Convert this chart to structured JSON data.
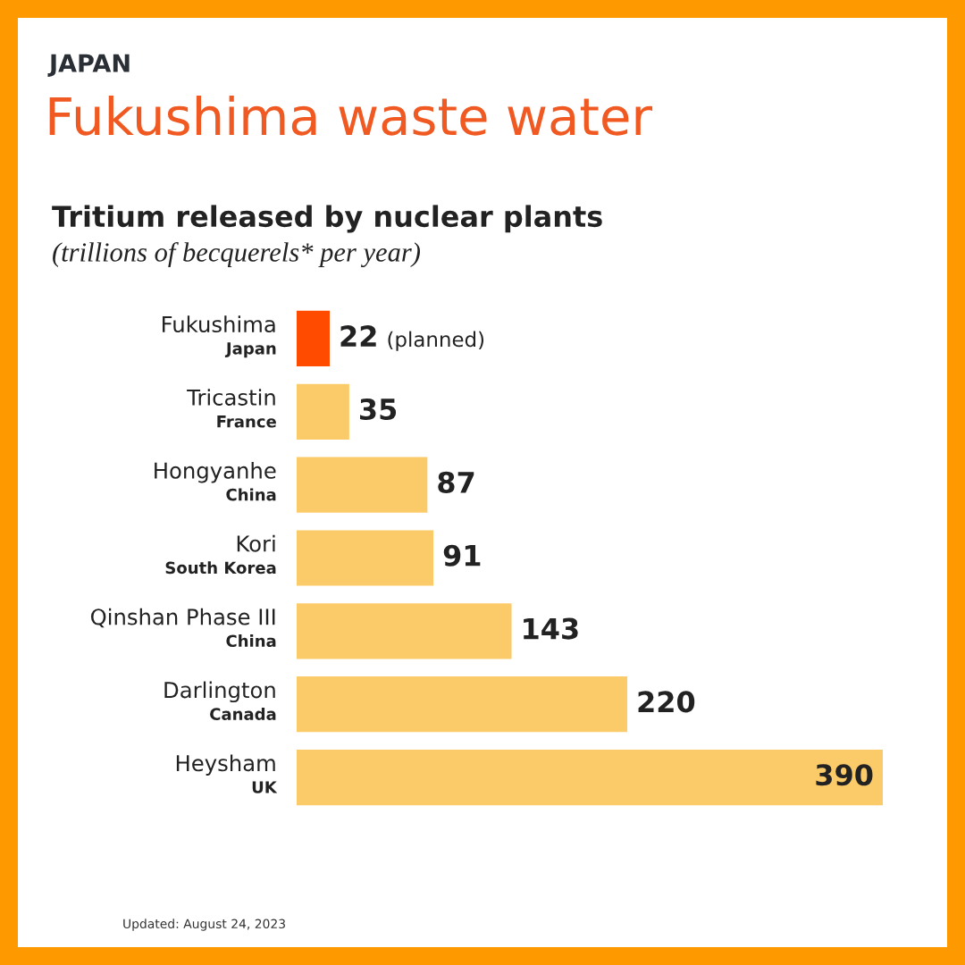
{
  "chart_data": {
    "type": "bar",
    "orientation": "horizontal",
    "title": "Fukushima waste water",
    "subtitle": "Tritium released by nuclear plants",
    "categories": [
      "Fukushima\nJapan",
      "Tricastin\nFrance",
      "Hongyanhe\nChina",
      "Kori\nSouth Korea",
      "Qinshan Phase III\nChina",
      "Darlington\nCanada",
      "Heysham\nUK"
    ],
    "values": [
      22,
      35,
      87,
      91,
      143,
      220,
      390
    ],
    "colors": [
      "#ff4b00",
      "#fccb69",
      "#fccb69",
      "#fccb69",
      "#fccb69",
      "#fccb69",
      "#fccb69"
    ],
    "data_labels": true,
    "tick_labels": "y",
    "annotations": [
      "JAPAN",
      "(trillions of becquerels* per year)",
      {
        "text": "(planned)",
        "x": 22,
        "y": "Fukushima\nJapan"
      },
      "Updated: August 24, 2023"
    ]
  }
}
